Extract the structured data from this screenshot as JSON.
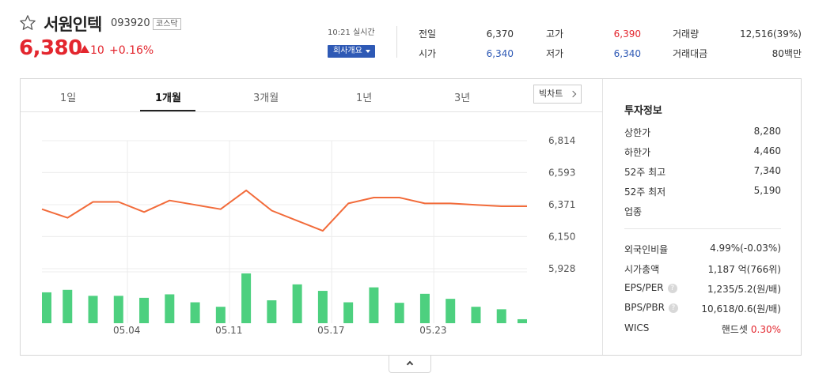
{
  "header": {
    "name": "서원인텍",
    "code": "093920",
    "market": "코스닥",
    "price": "6,380",
    "change": "10",
    "change_rate": "+0.16%",
    "realtime": "10:21 실시간",
    "company_button": "회사개요"
  },
  "quote": [
    {
      "label": "전일",
      "value": "6,370",
      "color": "dark"
    },
    {
      "label": "고가",
      "value": "6,390",
      "color": "red"
    },
    {
      "label": "거래량",
      "value": "12,516(39%)",
      "color": "dark"
    },
    {
      "label": "시가",
      "value": "6,340",
      "color": "blue"
    },
    {
      "label": "저가",
      "value": "6,340",
      "color": "blue"
    },
    {
      "label": "거래대금",
      "value": "80백만",
      "color": "dark"
    }
  ],
  "tabs": [
    {
      "label": "1일",
      "active": false
    },
    {
      "label": "1개월",
      "active": true
    },
    {
      "label": "3개월",
      "active": false
    },
    {
      "label": "1년",
      "active": false
    },
    {
      "label": "3년",
      "active": false
    }
  ],
  "big_chart_label": "빅차트",
  "chart_data": {
    "type": "line",
    "y_ticks": [
      "6,814",
      "6,593",
      "6,371",
      "6,150",
      "5,928"
    ],
    "y_tick_values": [
      6814,
      6593,
      6371,
      6150,
      5928
    ],
    "x_tick_labels": [
      "05.04",
      "05.11",
      "05.17",
      "05.23"
    ],
    "x_tick_indices": [
      4,
      8,
      12,
      16
    ],
    "price_values": [
      6340,
      6280,
      6390,
      6390,
      6320,
      6400,
      6370,
      6340,
      6470,
      6330,
      6260,
      6190,
      6380,
      6420,
      6420,
      6380,
      6380,
      6370,
      6360,
      6360
    ],
    "volume_relative": [
      0.62,
      0.67,
      0.55,
      0.55,
      0.51,
      0.58,
      0.42,
      0.33,
      1.0,
      0.46,
      0.78,
      0.65,
      0.42,
      0.72,
      0.41,
      0.59,
      0.49,
      0.33,
      0.28,
      0.08
    ],
    "line_color": "#f26b3a",
    "bar_color": "#4dd07f"
  },
  "invest": {
    "title": "투자정보",
    "rows": [
      {
        "label": "상한가",
        "value": "8,280",
        "color": "red"
      },
      {
        "label": "하한가",
        "value": "4,460",
        "color": "blue"
      },
      {
        "label": "52주 최고",
        "value": "7,340",
        "color": "dark"
      },
      {
        "label": "52주 최저",
        "value": "5,190",
        "color": "dark"
      },
      {
        "label": "업종",
        "value": "",
        "color": "dark"
      }
    ],
    "rows2": [
      {
        "label": "외국인비율",
        "value": "4.99%(-0.03%)",
        "help": false
      },
      {
        "label": "시가총액",
        "value": "1,187 억(766위)",
        "help": false
      },
      {
        "label": "EPS/PER",
        "value": "1,235/5.2(원/배)",
        "help": true
      },
      {
        "label": "BPS/PBR",
        "value": "10,618/0.6(원/배)",
        "help": true
      }
    ],
    "wics_label": "WICS",
    "wics_sector": "핸드셋",
    "wics_rate": "0.30%"
  }
}
